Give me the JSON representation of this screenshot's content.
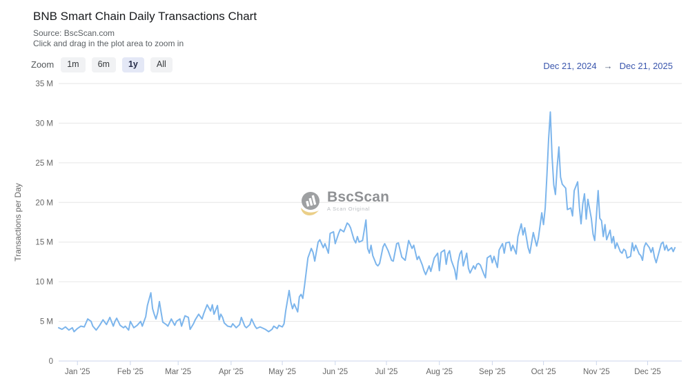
{
  "header": {
    "title": "BNB Smart Chain Daily Transactions Chart",
    "source_line": "Source: BscScan.com",
    "hint_line": "Click and drag in the plot area to zoom in"
  },
  "toolbar": {
    "zoom_label": "Zoom",
    "buttons": [
      {
        "label": "1m",
        "selected": false
      },
      {
        "label": "6m",
        "selected": false
      },
      {
        "label": "1y",
        "selected": true
      },
      {
        "label": "All",
        "selected": false
      }
    ],
    "range": {
      "from": "Dec 21, 2024",
      "arrow": "→",
      "to": "Dec 21, 2025"
    }
  },
  "watermark": {
    "name": "BscScan",
    "tagline": "A Scan Original",
    "logo": "bscscan-bar-chart-circle"
  },
  "colors": {
    "series_line": "#7cb5ec",
    "grid_line": "#e6e6e6",
    "axis_line": "#ccd6eb",
    "tick_label": "#666666",
    "range_date": "#3a56ad",
    "button_bg": "#f1f2f4",
    "button_selected_bg": "#e4e8f6",
    "watermark_gray": "#97999b",
    "watermark_yellow": "#e8c878"
  },
  "chart_data": {
    "type": "line",
    "title": "BNB Smart Chain Daily Transactions Chart",
    "xlabel": "",
    "ylabel": "Transactions per Day",
    "ylim": [
      0,
      35
    ],
    "grid": true,
    "legend": false,
    "y_unit": "millions of transactions",
    "y_ticks": [
      {
        "value": 0,
        "label": "0"
      },
      {
        "value": 5,
        "label": "5 M"
      },
      {
        "value": 10,
        "label": "10 M"
      },
      {
        "value": 15,
        "label": "15 M"
      },
      {
        "value": 20,
        "label": "20 M"
      },
      {
        "value": 25,
        "label": "25 M"
      },
      {
        "value": 30,
        "label": "30 M"
      },
      {
        "value": 35,
        "label": "35 M"
      }
    ],
    "x_range": [
      "Dec 21, 2024",
      "Dec 21, 2025"
    ],
    "x_unit": "days since Dec 21, 2024",
    "x_domain": [
      0,
      365
    ],
    "x_ticks": [
      {
        "day": 11,
        "label": "Jan '25"
      },
      {
        "day": 42,
        "label": "Feb '25"
      },
      {
        "day": 70,
        "label": "Mar '25"
      },
      {
        "day": 101,
        "label": "Apr '25"
      },
      {
        "day": 131,
        "label": "May '25"
      },
      {
        "day": 162,
        "label": "Jun '25"
      },
      {
        "day": 192,
        "label": "Jul '25"
      },
      {
        "day": 223,
        "label": "Aug '25"
      },
      {
        "day": 254,
        "label": "Sep '25"
      },
      {
        "day": 284,
        "label": "Oct '25"
      },
      {
        "day": 315,
        "label": "Nov '25"
      },
      {
        "day": 345,
        "label": "Dec '25"
      }
    ],
    "series": [
      {
        "name": "Transactions per Day",
        "unit": "M",
        "color": "#7cb5ec",
        "points": [
          [
            0,
            4.2
          ],
          [
            2,
            4.0
          ],
          [
            4,
            4.3
          ],
          [
            6,
            3.9
          ],
          [
            8,
            4.2
          ],
          [
            9,
            3.7
          ],
          [
            11,
            4.1
          ],
          [
            13,
            4.4
          ],
          [
            15,
            4.3
          ],
          [
            17,
            5.3
          ],
          [
            19,
            5.0
          ],
          [
            20,
            4.4
          ],
          [
            22,
            3.9
          ],
          [
            24,
            4.5
          ],
          [
            26,
            5.2
          ],
          [
            28,
            4.6
          ],
          [
            30,
            5.5
          ],
          [
            32,
            4.4
          ],
          [
            33,
            5.0
          ],
          [
            34,
            5.4
          ],
          [
            36,
            4.5
          ],
          [
            38,
            4.2
          ],
          [
            39,
            4.4
          ],
          [
            41,
            3.9
          ],
          [
            42,
            5.0
          ],
          [
            44,
            4.2
          ],
          [
            46,
            4.5
          ],
          [
            48,
            5.0
          ],
          [
            49,
            4.4
          ],
          [
            51,
            5.6
          ],
          [
            52,
            7.0
          ],
          [
            54,
            8.6
          ],
          [
            55,
            6.6
          ],
          [
            56,
            5.9
          ],
          [
            57,
            5.3
          ],
          [
            58,
            6.1
          ],
          [
            59,
            7.5
          ],
          [
            60,
            6.2
          ],
          [
            61,
            4.9
          ],
          [
            63,
            4.6
          ],
          [
            64,
            4.4
          ],
          [
            66,
            5.3
          ],
          [
            68,
            4.5
          ],
          [
            69,
            5.0
          ],
          [
            71,
            5.3
          ],
          [
            72,
            4.4
          ],
          [
            74,
            5.7
          ],
          [
            76,
            5.5
          ],
          [
            77,
            4.0
          ],
          [
            79,
            4.7
          ],
          [
            80,
            5.2
          ],
          [
            82,
            5.9
          ],
          [
            84,
            5.3
          ],
          [
            85,
            6.0
          ],
          [
            87,
            7.1
          ],
          [
            89,
            6.3
          ],
          [
            90,
            7.1
          ],
          [
            91,
            5.9
          ],
          [
            93,
            7.0
          ],
          [
            94,
            5.2
          ],
          [
            95,
            5.9
          ],
          [
            96,
            5.5
          ],
          [
            97,
            4.8
          ],
          [
            99,
            4.4
          ],
          [
            101,
            4.3
          ],
          [
            102,
            4.7
          ],
          [
            104,
            4.2
          ],
          [
            106,
            4.6
          ],
          [
            107,
            5.5
          ],
          [
            109,
            4.4
          ],
          [
            110,
            4.2
          ],
          [
            112,
            4.6
          ],
          [
            113,
            5.3
          ],
          [
            115,
            4.4
          ],
          [
            116,
            4.1
          ],
          [
            118,
            4.3
          ],
          [
            120,
            4.1
          ],
          [
            121,
            4.0
          ],
          [
            123,
            3.7
          ],
          [
            125,
            4.0
          ],
          [
            126,
            4.4
          ],
          [
            128,
            4.1
          ],
          [
            129,
            4.5
          ],
          [
            131,
            4.3
          ],
          [
            132,
            4.7
          ],
          [
            133,
            6.3
          ],
          [
            135,
            8.9
          ],
          [
            136,
            7.4
          ],
          [
            137,
            6.6
          ],
          [
            138,
            7.2
          ],
          [
            140,
            6.2
          ],
          [
            141,
            8.1
          ],
          [
            142,
            8.4
          ],
          [
            143,
            7.9
          ],
          [
            144,
            9.5
          ],
          [
            145,
            11.2
          ],
          [
            146,
            13.0
          ],
          [
            148,
            14.2
          ],
          [
            149,
            13.7
          ],
          [
            150,
            12.6
          ],
          [
            152,
            15.0
          ],
          [
            153,
            15.3
          ],
          [
            155,
            14.3
          ],
          [
            156,
            14.8
          ],
          [
            158,
            13.6
          ],
          [
            159,
            16.1
          ],
          [
            161,
            16.3
          ],
          [
            162,
            14.8
          ],
          [
            164,
            16.1
          ],
          [
            165,
            16.6
          ],
          [
            167,
            16.3
          ],
          [
            169,
            17.4
          ],
          [
            170,
            17.2
          ],
          [
            171,
            16.8
          ],
          [
            173,
            15.3
          ],
          [
            174,
            14.9
          ],
          [
            175,
            15.7
          ],
          [
            176,
            15.0
          ],
          [
            178,
            15.2
          ],
          [
            180,
            17.8
          ],
          [
            181,
            14.2
          ],
          [
            182,
            13.6
          ],
          [
            183,
            14.6
          ],
          [
            184,
            13.3
          ],
          [
            186,
            12.2
          ],
          [
            187,
            12.0
          ],
          [
            188,
            12.3
          ],
          [
            190,
            14.4
          ],
          [
            191,
            14.8
          ],
          [
            193,
            13.9
          ],
          [
            195,
            12.7
          ],
          [
            196,
            12.6
          ],
          [
            198,
            14.8
          ],
          [
            199,
            14.9
          ],
          [
            201,
            13.1
          ],
          [
            203,
            12.7
          ],
          [
            205,
            15.2
          ],
          [
            207,
            14.2
          ],
          [
            208,
            14.6
          ],
          [
            210,
            12.8
          ],
          [
            211,
            13.2
          ],
          [
            213,
            12.1
          ],
          [
            214,
            11.4
          ],
          [
            215,
            10.9
          ],
          [
            217,
            12.0
          ],
          [
            218,
            11.3
          ],
          [
            220,
            13.0
          ],
          [
            222,
            13.6
          ],
          [
            223,
            11.4
          ],
          [
            224,
            13.7
          ],
          [
            226,
            14.0
          ],
          [
            227,
            12.2
          ],
          [
            228,
            13.5
          ],
          [
            229,
            13.9
          ],
          [
            230,
            12.7
          ],
          [
            232,
            11.5
          ],
          [
            233,
            10.3
          ],
          [
            234,
            12.5
          ],
          [
            235,
            13.5
          ],
          [
            236,
            13.9
          ],
          [
            237,
            12.0
          ],
          [
            239,
            13.6
          ],
          [
            240,
            11.7
          ],
          [
            241,
            11.1
          ],
          [
            243,
            12.0
          ],
          [
            244,
            11.6
          ],
          [
            245,
            12.2
          ],
          [
            246,
            12.3
          ],
          [
            247,
            12.1
          ],
          [
            249,
            11.0
          ],
          [
            250,
            10.5
          ],
          [
            251,
            13.0
          ],
          [
            253,
            13.3
          ],
          [
            254,
            12.4
          ],
          [
            255,
            13.2
          ],
          [
            257,
            11.8
          ],
          [
            258,
            14.0
          ],
          [
            260,
            14.8
          ],
          [
            261,
            13.6
          ],
          [
            262,
            14.9
          ],
          [
            264,
            15.0
          ],
          [
            265,
            13.9
          ],
          [
            266,
            14.6
          ],
          [
            268,
            13.5
          ],
          [
            269,
            15.7
          ],
          [
            271,
            17.3
          ],
          [
            272,
            15.9
          ],
          [
            273,
            16.8
          ],
          [
            275,
            14.3
          ],
          [
            276,
            13.6
          ],
          [
            278,
            16.2
          ],
          [
            280,
            14.5
          ],
          [
            281,
            15.5
          ],
          [
            283,
            18.7
          ],
          [
            284,
            17.2
          ],
          [
            285,
            19.3
          ],
          [
            286,
            23.5
          ],
          [
            287,
            28.0
          ],
          [
            288,
            31.4
          ],
          [
            289,
            25.8
          ],
          [
            290,
            22.2
          ],
          [
            291,
            21.0
          ],
          [
            292,
            24.5
          ],
          [
            293,
            27.0
          ],
          [
            294,
            23.2
          ],
          [
            295,
            22.3
          ],
          [
            297,
            21.8
          ],
          [
            298,
            19.1
          ],
          [
            300,
            19.3
          ],
          [
            301,
            18.3
          ],
          [
            302,
            21.5
          ],
          [
            304,
            22.6
          ],
          [
            305,
            19.4
          ],
          [
            306,
            17.3
          ],
          [
            307,
            19.8
          ],
          [
            308,
            21.1
          ],
          [
            309,
            17.9
          ],
          [
            310,
            20.4
          ],
          [
            312,
            18.0
          ],
          [
            313,
            16.0
          ],
          [
            314,
            15.2
          ],
          [
            316,
            21.5
          ],
          [
            317,
            18.0
          ],
          [
            318,
            17.7
          ],
          [
            319,
            15.7
          ],
          [
            320,
            17.2
          ],
          [
            321,
            15.3
          ],
          [
            323,
            16.5
          ],
          [
            324,
            14.9
          ],
          [
            325,
            15.7
          ],
          [
            326,
            14.2
          ],
          [
            327,
            14.9
          ],
          [
            329,
            13.8
          ],
          [
            330,
            13.6
          ],
          [
            331,
            14.1
          ],
          [
            332,
            13.9
          ],
          [
            333,
            13.0
          ],
          [
            335,
            13.2
          ],
          [
            336,
            14.9
          ],
          [
            337,
            13.9
          ],
          [
            338,
            14.6
          ],
          [
            340,
            13.5
          ],
          [
            341,
            13.3
          ],
          [
            342,
            12.7
          ],
          [
            343,
            14.4
          ],
          [
            344,
            14.9
          ],
          [
            346,
            14.3
          ],
          [
            347,
            13.7
          ],
          [
            348,
            14.3
          ],
          [
            349,
            13.1
          ],
          [
            350,
            12.4
          ],
          [
            352,
            14.0
          ],
          [
            353,
            14.8
          ],
          [
            354,
            15.0
          ],
          [
            355,
            14.0
          ],
          [
            356,
            14.6
          ],
          [
            357,
            13.9
          ],
          [
            359,
            14.3
          ],
          [
            360,
            13.8
          ],
          [
            361,
            14.3
          ]
        ]
      }
    ]
  }
}
